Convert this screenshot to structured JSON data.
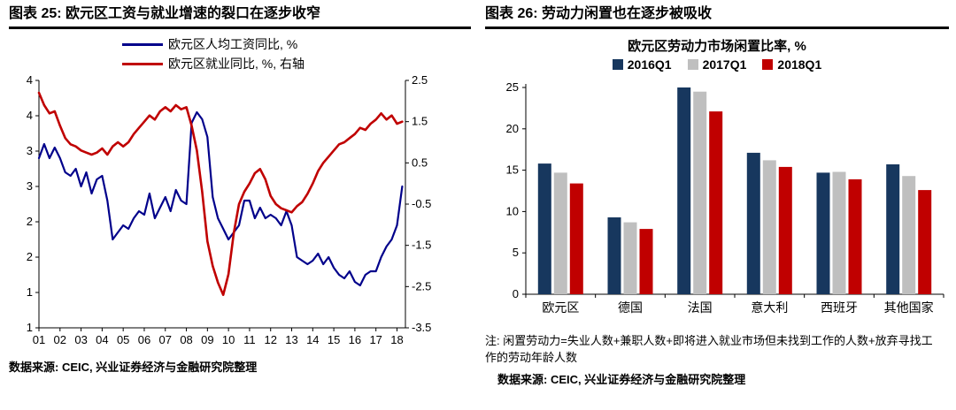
{
  "figure25": {
    "header": "图表 25: 欧元区工资与就业增速的裂口在逐步收窄",
    "source": "数据来源: CEIC, 兴业证券经济与金融研究院整理"
  },
  "figure26": {
    "header": "图表 26: 劳动力闲置也在逐步被吸收",
    "note": "注: 闲置劳动力=失业人数+兼职人数+即将进入就业市场但未找到工作的人数+放弃寻找工作的劳动年龄人数",
    "source": "数据来源: CEIC, 兴业证券经济与金融研究院整理"
  },
  "chart_data": [
    {
      "type": "line",
      "title": "",
      "x_range": [
        2001,
        2018.4
      ],
      "x_tick_labels": [
        "01",
        "02",
        "03",
        "04",
        "05",
        "06",
        "07",
        "08",
        "09",
        "10",
        "11",
        "12",
        "13",
        "14",
        "15",
        "16",
        "17",
        "18"
      ],
      "left_axis": {
        "min": 1.0,
        "max": 4.5,
        "ticks": [
          {
            "v": 4.5,
            "label": "4"
          },
          {
            "v": 4.0,
            "label": "4"
          },
          {
            "v": 3.5,
            "label": "3"
          },
          {
            "v": 3.0,
            "label": "3"
          },
          {
            "v": 2.5,
            "label": "2"
          },
          {
            "v": 2.0,
            "label": "2"
          },
          {
            "v": 1.5,
            "label": "1"
          },
          {
            "v": 1.0,
            "label": "1"
          }
        ]
      },
      "right_axis": {
        "min": -3.5,
        "max": 2.5,
        "ticks": [
          {
            "v": 2.5,
            "label": "2.5"
          },
          {
            "v": 1.5,
            "label": "1.5"
          },
          {
            "v": 0.5,
            "label": "0.5"
          },
          {
            "v": -0.5,
            "label": "-0.5"
          },
          {
            "v": -1.5,
            "label": "-1.5"
          },
          {
            "v": -2.5,
            "label": "-2.5"
          },
          {
            "v": -3.5,
            "label": "-3.5"
          }
        ]
      },
      "series": [
        {
          "name": "欧元区人均工资同比, %",
          "color": "#00008B",
          "axis": "left",
          "x_start": 2001,
          "x_step": 0.25,
          "values": [
            3.4,
            3.6,
            3.4,
            3.55,
            3.4,
            3.2,
            3.15,
            3.25,
            3.0,
            3.2,
            2.9,
            3.1,
            3.15,
            2.8,
            2.25,
            2.35,
            2.45,
            2.4,
            2.55,
            2.65,
            2.6,
            2.9,
            2.55,
            2.7,
            2.85,
            2.65,
            2.95,
            2.8,
            2.75,
            3.9,
            4.05,
            3.95,
            3.7,
            2.85,
            2.55,
            2.4,
            2.25,
            2.35,
            2.45,
            2.8,
            2.8,
            2.55,
            2.7,
            2.55,
            2.6,
            2.55,
            2.45,
            2.65,
            2.45,
            2.0,
            1.95,
            1.9,
            1.95,
            2.05,
            1.9,
            2.0,
            1.85,
            1.75,
            1.7,
            1.8,
            1.65,
            1.6,
            1.75,
            1.8,
            1.8,
            2.0,
            2.15,
            2.25,
            2.45,
            3.0
          ]
        },
        {
          "name": "欧元区就业同比, %, 右轴",
          "color": "#C00000",
          "axis": "right",
          "x_start": 2001,
          "x_step": 0.25,
          "values": [
            2.2,
            1.9,
            1.7,
            1.75,
            1.4,
            1.1,
            0.95,
            0.9,
            0.8,
            0.75,
            0.7,
            0.75,
            0.85,
            0.7,
            0.9,
            1.0,
            0.9,
            1.0,
            1.2,
            1.35,
            1.5,
            1.65,
            1.55,
            1.75,
            1.85,
            1.75,
            1.9,
            1.8,
            1.85,
            1.4,
            0.8,
            -0.2,
            -1.4,
            -2.0,
            -2.4,
            -2.7,
            -2.2,
            -1.2,
            -0.5,
            -0.2,
            0.0,
            0.25,
            0.35,
            0.1,
            -0.3,
            -0.5,
            -0.6,
            -0.65,
            -0.7,
            -0.55,
            -0.45,
            -0.25,
            0.0,
            0.3,
            0.5,
            0.65,
            0.8,
            0.95,
            1.0,
            1.1,
            1.2,
            1.35,
            1.3,
            1.45,
            1.55,
            1.7,
            1.55,
            1.65,
            1.45,
            1.5
          ]
        }
      ]
    },
    {
      "type": "bar",
      "title": "欧元区劳动力市场闲置比率, %",
      "categories": [
        "欧元区",
        "德国",
        "法国",
        "意大利",
        "西班牙",
        "其他国家"
      ],
      "series": [
        {
          "name": "2016Q1",
          "color": "#17375E",
          "values": [
            15.8,
            9.3,
            25.0,
            17.1,
            14.7,
            15.7
          ]
        },
        {
          "name": "2017Q1",
          "color": "#BFBFBF",
          "values": [
            14.7,
            8.7,
            24.5,
            16.2,
            14.8,
            14.3
          ]
        },
        {
          "name": "2018Q1",
          "color": "#C00000",
          "values": [
            13.4,
            7.9,
            22.1,
            15.4,
            13.9,
            12.6
          ]
        }
      ],
      "ylim": [
        0,
        25
      ],
      "y_ticks": [
        0,
        5,
        10,
        15,
        20,
        25
      ],
      "legend_position": "top"
    }
  ]
}
